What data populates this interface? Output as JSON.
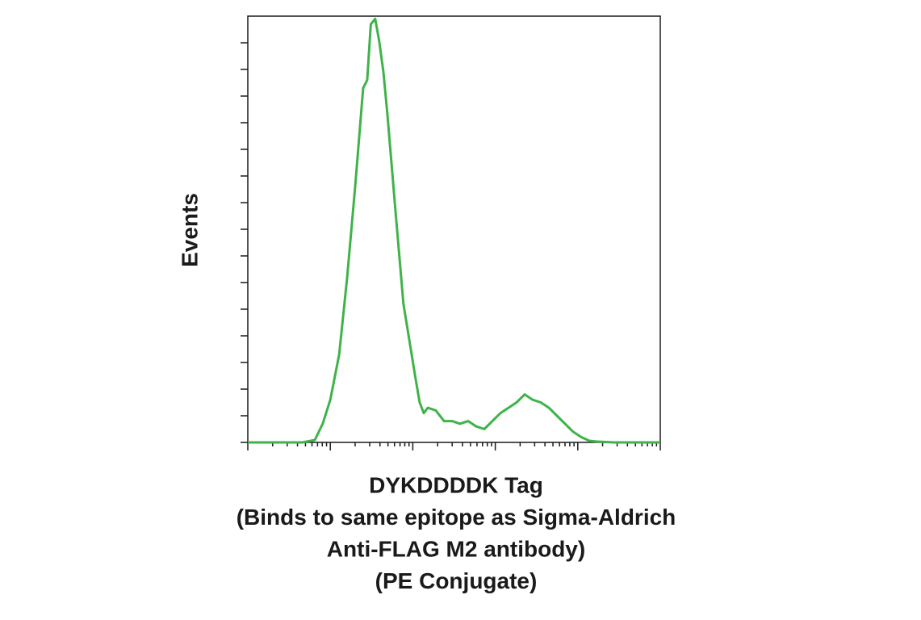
{
  "chart_data": {
    "type": "line",
    "xlabel": [
      "DYKDDDDK Tag",
      "(Binds to same epitope as Sigma-Aldrich",
      "Anti-FLAG M2 antibody)",
      "(PE Conjugate)"
    ],
    "ylabel": "Events",
    "x": [
      1,
      4.6,
      6.5,
      8.1,
      10,
      12.8,
      16,
      20,
      25,
      28,
      31,
      35,
      39,
      44,
      49,
      62,
      77,
      97,
      108,
      121,
      136,
      152,
      190,
      239,
      299,
      374,
      469,
      587,
      736,
      922,
      1155,
      1446,
      1813,
      2270,
      2845,
      3565,
      4465,
      5595,
      7000,
      8770,
      11000,
      13770,
      17250,
      27000,
      100000
    ],
    "series": [
      {
        "color": "#3fb34a",
        "values": [
          0,
          0,
          0.9,
          7,
          16,
          33,
          62,
          96,
          133,
          136,
          157,
          159,
          151,
          139,
          124,
          86,
          52,
          33,
          24,
          15,
          11,
          13,
          12,
          8,
          8,
          7,
          8,
          6,
          5,
          8,
          11,
          13,
          15,
          18,
          16,
          15,
          13,
          10,
          7,
          4,
          2,
          0.6,
          0.3,
          0,
          0
        ]
      }
    ],
    "xlog": true,
    "xlim": [
      1,
      100000
    ],
    "xticks": [
      1,
      10,
      100,
      1000,
      10000,
      100000
    ],
    "ylim": [
      0,
      160
    ],
    "yticks": [
      0,
      10,
      20,
      30,
      40,
      50,
      60,
      70,
      80,
      90,
      100,
      110,
      120,
      130,
      140,
      150
    ]
  }
}
